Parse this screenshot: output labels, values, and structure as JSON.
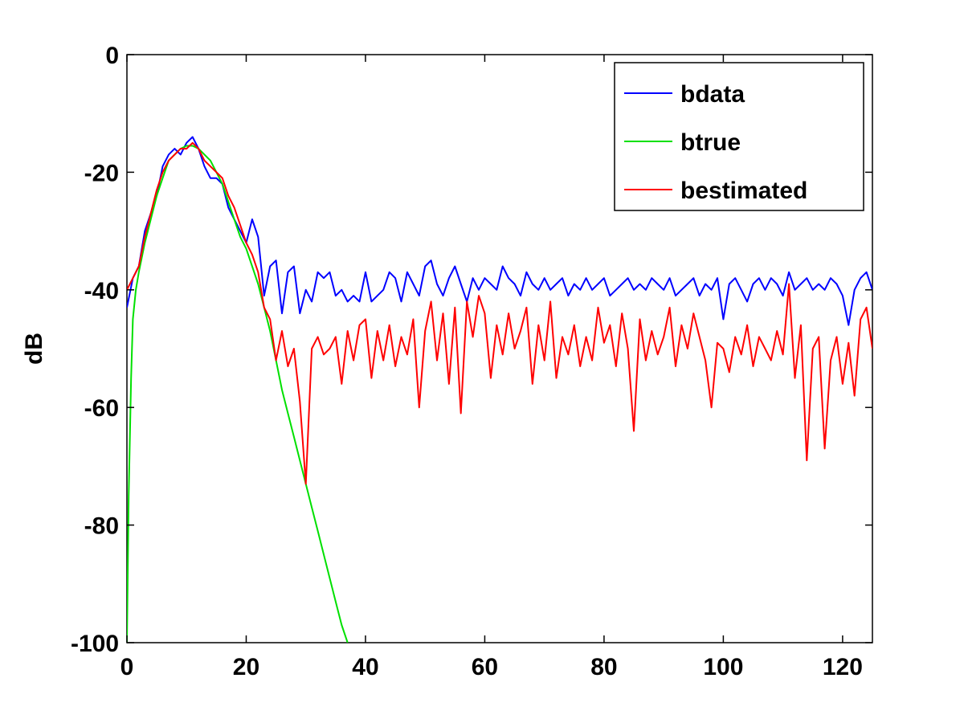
{
  "chart_data": {
    "type": "line",
    "title": "",
    "xlabel": "",
    "ylabel": "dB",
    "xlim": [
      0,
      125
    ],
    "ylim": [
      -100,
      0
    ],
    "xticks": [
      0,
      20,
      40,
      60,
      80,
      100,
      120
    ],
    "yticks": [
      0,
      -20,
      -40,
      -60,
      -80,
      -100
    ],
    "grid": false,
    "legend_position": "top-right",
    "series": [
      {
        "name": "bdata",
        "color": "#0000ff",
        "x": [
          0,
          1,
          2,
          3,
          4,
          5,
          6,
          7,
          8,
          9,
          10,
          11,
          12,
          13,
          14,
          15,
          16,
          17,
          18,
          19,
          20,
          21,
          22,
          23,
          24,
          25,
          26,
          27,
          28,
          29,
          30,
          31,
          32,
          33,
          34,
          35,
          36,
          37,
          38,
          39,
          40,
          41,
          42,
          43,
          44,
          45,
          46,
          47,
          48,
          49,
          50,
          51,
          52,
          53,
          54,
          55,
          56,
          57,
          58,
          59,
          60,
          61,
          62,
          63,
          64,
          65,
          66,
          67,
          68,
          69,
          70,
          71,
          72,
          73,
          74,
          75,
          76,
          77,
          78,
          79,
          80,
          81,
          82,
          83,
          84,
          85,
          86,
          87,
          88,
          89,
          90,
          91,
          92,
          93,
          94,
          95,
          96,
          97,
          98,
          99,
          100,
          101,
          102,
          103,
          104,
          105,
          106,
          107,
          108,
          109,
          110,
          111,
          112,
          113,
          114,
          115,
          116,
          117,
          118,
          119,
          120,
          121,
          122,
          123,
          124,
          125
        ],
        "y": [
          -43,
          -38,
          -36,
          -30,
          -27,
          -24,
          -19,
          -17,
          -16,
          -17,
          -15,
          -14,
          -16,
          -19,
          -21,
          -21,
          -22,
          -26,
          -28,
          -30,
          -32,
          -28,
          -31,
          -41,
          -36,
          -35,
          -44,
          -37,
          -36,
          -44,
          -40,
          -42,
          -37,
          -38,
          -37,
          -41,
          -40,
          -42,
          -41,
          -42,
          -37,
          -42,
          -41,
          -40,
          -37,
          -38,
          -42,
          -37,
          -39,
          -41,
          -36,
          -35,
          -39,
          -41,
          -38,
          -36,
          -39,
          -42,
          -38,
          -40,
          -38,
          -39,
          -40,
          -36,
          -38,
          -39,
          -41,
          -37,
          -39,
          -40,
          -38,
          -40,
          -39,
          -38,
          -41,
          -39,
          -40,
          -38,
          -40,
          -39,
          -38,
          -41,
          -40,
          -39,
          -38,
          -40,
          -39,
          -40,
          -38,
          -39,
          -40,
          -38,
          -41,
          -40,
          -39,
          -38,
          -41,
          -39,
          -40,
          -38,
          -45,
          -39,
          -38,
          -40,
          -42,
          -39,
          -38,
          -40,
          -38,
          -39,
          -41,
          -37,
          -40,
          -39,
          -38,
          -40,
          -39,
          -40,
          -38,
          -39,
          -41,
          -46,
          -40,
          -38,
          -37,
          -40
        ]
      },
      {
        "name": "btrue",
        "color": "#00e000",
        "x": [
          0,
          0.3,
          0.7,
          1,
          1.5,
          2,
          3,
          4,
          5,
          6,
          7,
          8,
          9,
          10,
          11,
          12,
          13,
          14,
          15,
          16,
          17,
          18,
          19,
          20,
          21,
          22,
          23,
          24,
          25,
          26,
          27,
          28,
          29,
          30,
          31,
          32,
          33,
          34,
          35,
          36,
          37
        ],
        "y": [
          -100,
          -75,
          -55,
          -45,
          -40,
          -37,
          -32,
          -28,
          -24,
          -21,
          -18,
          -17,
          -16,
          -15.5,
          -15.5,
          -16,
          -17,
          -18,
          -20,
          -22,
          -25,
          -28,
          -31,
          -33,
          -36,
          -39,
          -43,
          -47,
          -52,
          -57,
          -61,
          -65,
          -69,
          -73,
          -77,
          -81,
          -85,
          -89,
          -93,
          -97,
          -100
        ]
      },
      {
        "name": "bestimated",
        "color": "#ff0000",
        "x": [
          0,
          1,
          2,
          3,
          4,
          5,
          6,
          7,
          8,
          9,
          10,
          11,
          12,
          13,
          14,
          15,
          16,
          17,
          18,
          19,
          20,
          21,
          22,
          23,
          24,
          25,
          26,
          27,
          28,
          29,
          30,
          31,
          32,
          33,
          34,
          35,
          36,
          37,
          38,
          39,
          40,
          41,
          42,
          43,
          44,
          45,
          46,
          47,
          48,
          49,
          50,
          51,
          52,
          53,
          54,
          55,
          56,
          57,
          58,
          59,
          60,
          61,
          62,
          63,
          64,
          65,
          66,
          67,
          68,
          69,
          70,
          71,
          72,
          73,
          74,
          75,
          76,
          77,
          78,
          79,
          80,
          81,
          82,
          83,
          84,
          85,
          86,
          87,
          88,
          89,
          90,
          91,
          92,
          93,
          94,
          95,
          96,
          97,
          98,
          99,
          100,
          101,
          102,
          103,
          104,
          105,
          106,
          107,
          108,
          109,
          110,
          111,
          112,
          113,
          114,
          115,
          116,
          117,
          118,
          119,
          120,
          121,
          122,
          123,
          124,
          125
        ],
        "y": [
          -40,
          -38,
          -36,
          -31,
          -27,
          -23,
          -20,
          -18,
          -17,
          -16,
          -16,
          -15,
          -16,
          -18,
          -19,
          -20,
          -21,
          -24,
          -26,
          -29,
          -32,
          -34,
          -37,
          -43,
          -45,
          -52,
          -47,
          -53,
          -50,
          -59,
          -73,
          -50,
          -48,
          -51,
          -50,
          -48,
          -56,
          -47,
          -52,
          -46,
          -45,
          -55,
          -47,
          -52,
          -46,
          -53,
          -48,
          -51,
          -45,
          -60,
          -47,
          -42,
          -52,
          -44,
          -56,
          -43,
          -61,
          -42,
          -48,
          -41,
          -44,
          -55,
          -46,
          -51,
          -44,
          -50,
          -47,
          -43,
          -56,
          -46,
          -52,
          -42,
          -55,
          -48,
          -51,
          -46,
          -53,
          -48,
          -52,
          -43,
          -49,
          -46,
          -53,
          -44,
          -50,
          -64,
          -45,
          -52,
          -47,
          -51,
          -48,
          -43,
          -53,
          -46,
          -50,
          -44,
          -48,
          -52,
          -60,
          -49,
          -50,
          -54,
          -48,
          -51,
          -46,
          -53,
          -48,
          -50,
          -52,
          -47,
          -51,
          -39,
          -55,
          -46,
          -69,
          -50,
          -48,
          -67,
          -52,
          -48,
          -56,
          -49,
          -58,
          -45,
          -43,
          -50
        ]
      }
    ]
  }
}
